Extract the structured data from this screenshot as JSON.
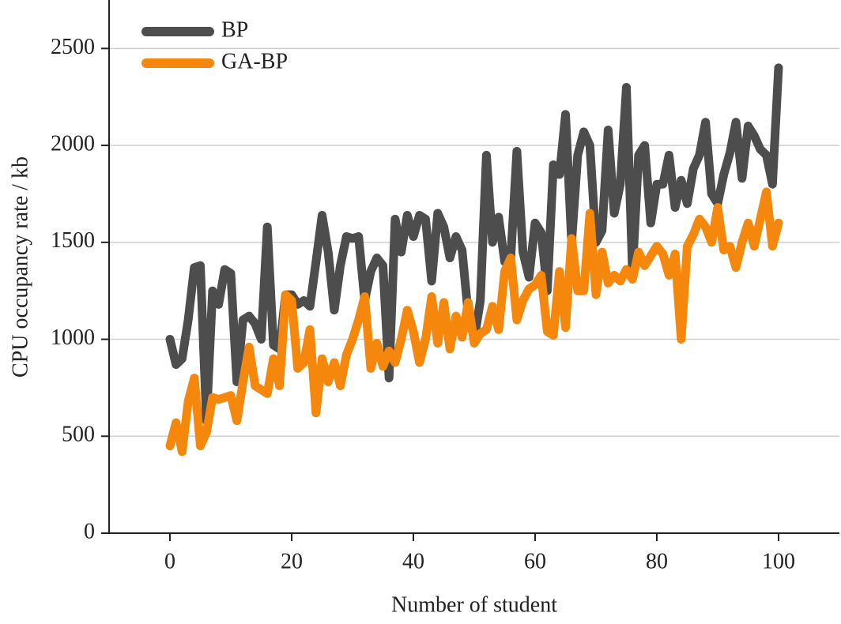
{
  "chart_data": {
    "type": "line",
    "x_label": "Number of student",
    "y_label": "CPU occupancy rate / kb",
    "x": [
      0,
      1,
      2,
      3,
      4,
      5,
      6,
      7,
      8,
      9,
      10,
      11,
      12,
      13,
      14,
      15,
      16,
      17,
      18,
      19,
      20,
      21,
      22,
      23,
      24,
      25,
      26,
      27,
      28,
      29,
      30,
      31,
      32,
      33,
      34,
      35,
      36,
      37,
      38,
      39,
      40,
      41,
      42,
      43,
      44,
      45,
      46,
      47,
      48,
      49,
      50,
      51,
      52,
      53,
      54,
      55,
      56,
      57,
      58,
      59,
      60,
      61,
      62,
      63,
      64,
      65,
      66,
      67,
      68,
      69,
      70,
      71,
      72,
      73,
      74,
      75,
      76,
      77,
      78,
      79,
      80,
      81,
      82,
      83,
      84,
      85,
      86,
      87,
      88,
      89,
      90,
      91,
      92,
      93,
      94,
      95,
      96,
      97,
      98,
      99,
      100
    ],
    "series": [
      {
        "name": "BP",
        "color": "#4d4d4d",
        "values": [
          1000,
          870,
          900,
          1100,
          1370,
          1380,
          580,
          1250,
          1180,
          1360,
          1340,
          780,
          1100,
          1120,
          1080,
          1000,
          1580,
          970,
          950,
          1230,
          1230,
          1180,
          1200,
          1170,
          1400,
          1640,
          1450,
          1150,
          1380,
          1530,
          1520,
          1530,
          1200,
          1350,
          1420,
          1380,
          800,
          1620,
          1450,
          1640,
          1530,
          1640,
          1620,
          1300,
          1650,
          1580,
          1420,
          1530,
          1460,
          1130,
          1000,
          1200,
          1950,
          1500,
          1630,
          1400,
          1420,
          1970,
          1450,
          1320,
          1600,
          1550,
          1250,
          1900,
          1850,
          2160,
          1500,
          1950,
          2070,
          2000,
          1500,
          1560,
          2080,
          1650,
          1800,
          2300,
          1350,
          1950,
          2000,
          1600,
          1800,
          1800,
          1950,
          1680,
          1820,
          1700,
          1880,
          1950,
          2120,
          1750,
          1700,
          1850,
          1960,
          2120,
          1830,
          2100,
          2050,
          1980,
          1950,
          1800,
          2400
        ]
      },
      {
        "name": "GA-BP",
        "color": "#f5870c",
        "values": [
          450,
          570,
          420,
          680,
          800,
          450,
          520,
          700,
          690,
          700,
          710,
          580,
          780,
          960,
          760,
          740,
          720,
          900,
          760,
          1230,
          1200,
          850,
          880,
          1050,
          620,
          900,
          780,
          880,
          760,
          920,
          1000,
          1100,
          1220,
          850,
          980,
          860,
          940,
          880,
          1000,
          1150,
          1040,
          880,
          1000,
          1220,
          980,
          1190,
          950,
          1120,
          1010,
          1190,
          980,
          1030,
          1050,
          1170,
          1050,
          1350,
          1420,
          1100,
          1200,
          1260,
          1280,
          1330,
          1040,
          1020,
          1350,
          1060,
          1520,
          1250,
          1250,
          1650,
          1230,
          1450,
          1290,
          1330,
          1300,
          1360,
          1310,
          1450,
          1380,
          1430,
          1480,
          1440,
          1330,
          1440,
          1000,
          1480,
          1540,
          1620,
          1580,
          1500,
          1680,
          1460,
          1480,
          1370,
          1500,
          1600,
          1480,
          1620,
          1760,
          1480,
          1600
        ]
      }
    ],
    "xlim": [
      -10,
      110
    ],
    "xticks": [
      0,
      20,
      40,
      60,
      80,
      100
    ],
    "ylim": [
      0,
      2750
    ],
    "yticks": [
      0,
      500,
      1000,
      1500,
      2000,
      2500
    ],
    "grid": true,
    "legend": "upper left"
  }
}
